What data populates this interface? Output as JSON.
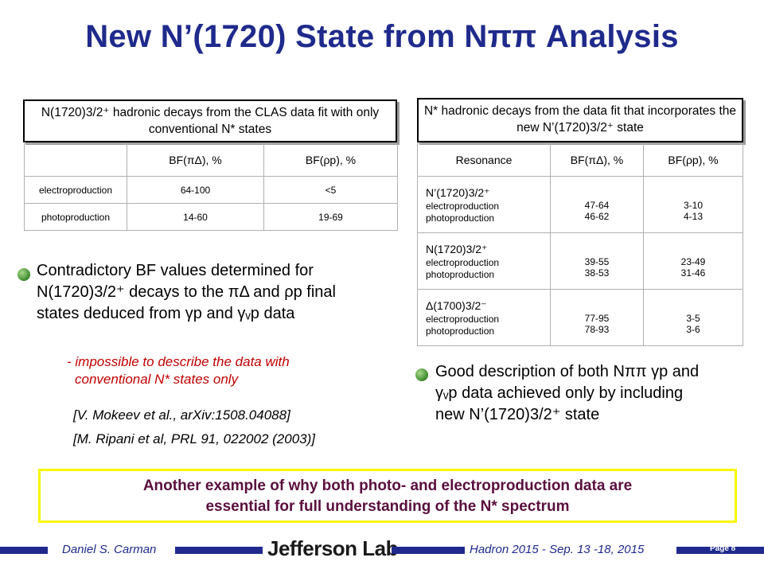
{
  "title": "New N’(1720) State from Nππ Analysis",
  "left_box": {
    "title": "N(1720)3/2⁺ hadronic decays from the CLAS data fit with only conventional N* states",
    "headers": [
      "",
      "BF(πΔ), %",
      "BF(ρp), %"
    ],
    "rows": [
      {
        "label": "electroproduction",
        "bf_pid": "64-100",
        "bf_rhop": "<5"
      },
      {
        "label": "photoproduction",
        "bf_pid": "14-60",
        "bf_rhop": "19-69"
      }
    ]
  },
  "right_box": {
    "title": "N* hadronic decays from the data fit that incorporates the new N’(1720)3/2⁺ state",
    "headers": [
      "Resonance",
      "BF(πΔ), %",
      "BF(ρp), %"
    ],
    "rows": [
      {
        "name": "N’(1720)3/2⁺",
        "sub1": "electroproduction",
        "sub2": "photoproduction",
        "pid1": "47-64",
        "pid2": "46-62",
        "rho1": "3-10",
        "rho2": "4-13"
      },
      {
        "name": "N(1720)3/2⁺",
        "sub1": "electroproduction",
        "sub2": "photoproduction",
        "pid1": "39-55",
        "pid2": "38-53",
        "rho1": "23-49",
        "rho2": "31-46"
      },
      {
        "name": "Δ(1700)3/2⁻",
        "sub1": "electroproduction",
        "sub2": "photoproduction",
        "pid1": "77-95",
        "pid2": "78-93",
        "rho1": "3-5",
        "rho2": "3-6"
      }
    ]
  },
  "bullet_left": {
    "line1": "Contradictory BF values determined for",
    "line2": "N(1720)3/2⁺ decays to the πΔ and ρp final",
    "line3": "states deduced from γp and γᵥp data"
  },
  "note": {
    "line1": "- impossible to describe the data with",
    "line2": "conventional N* states only"
  },
  "refs": [
    "[V. Mokeev et al., arXiv:1508.04088]",
    "[M. Ripani et al, PRL 91, 022002 (2003)]"
  ],
  "bullet_right": {
    "line1": "Good description of both Nππ γp and",
    "line2": "γᵥp data achieved only by including",
    "line3": "new N’(1720)3/2⁺ state"
  },
  "banner": {
    "line1": "Another example of why both photo- and electroproduction data are",
    "line2": "essential for full understanding of the N* spectrum"
  },
  "footer": {
    "author": "Daniel S. Carman",
    "logo": "Jefferson Lab",
    "event": "Hadron 2015 - Sep. 13 -18, 2015",
    "page": "Page 8"
  },
  "colors": {
    "title": "#1f2a8c",
    "note": "#c00000",
    "banner_text": "#5a0f3e",
    "banner_border": "#f7f700"
  }
}
